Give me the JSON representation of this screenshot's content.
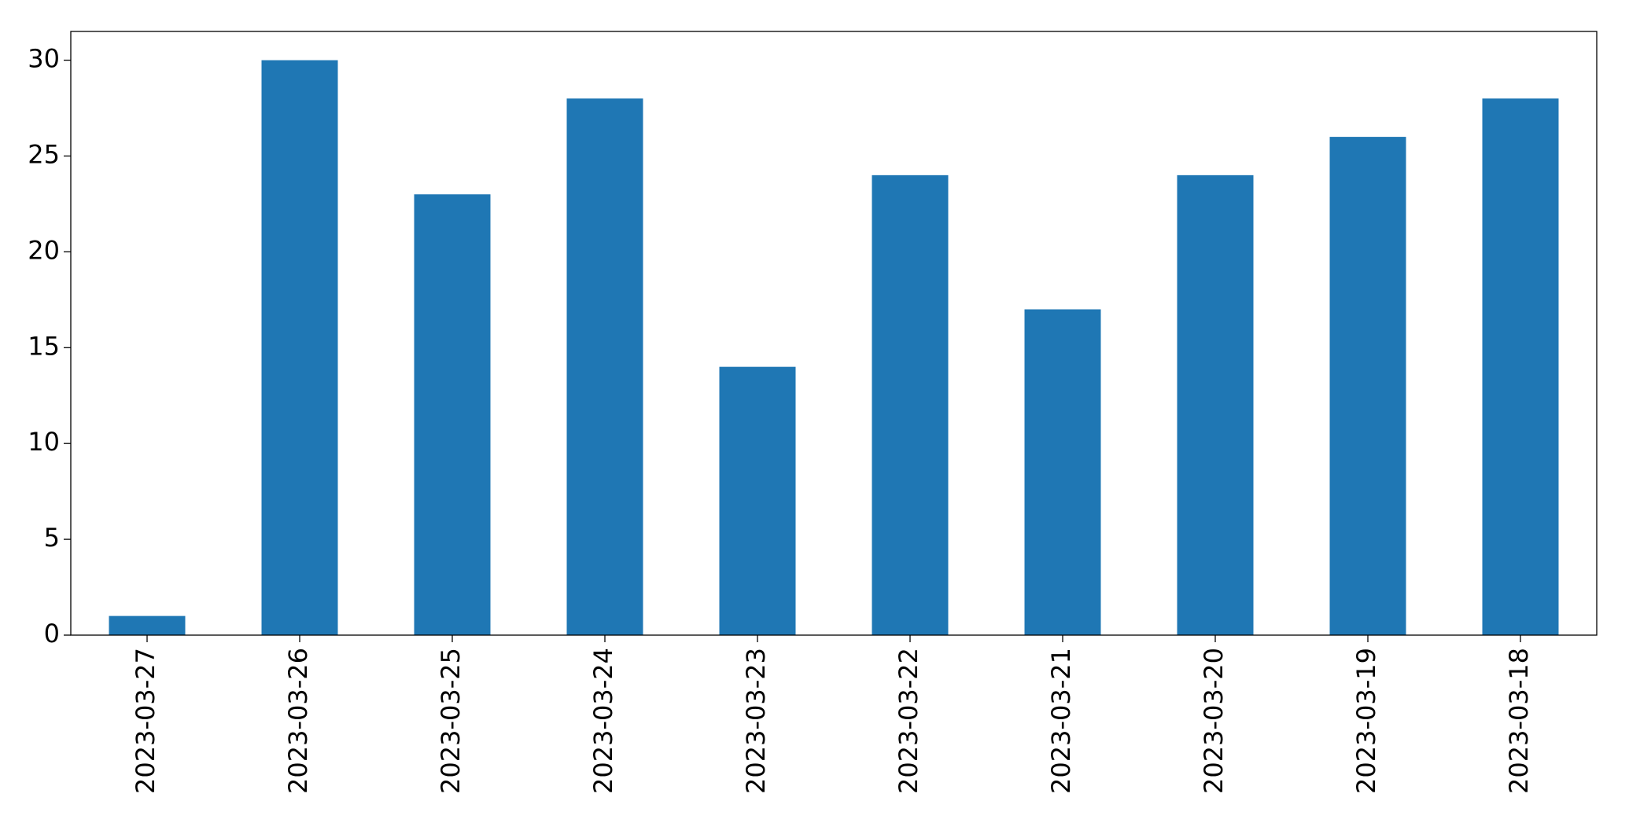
{
  "chart_data": {
    "type": "bar",
    "categories": [
      "2023-03-27",
      "2023-03-26",
      "2023-03-25",
      "2023-03-24",
      "2023-03-23",
      "2023-03-22",
      "2023-03-21",
      "2023-03-20",
      "2023-03-19",
      "2023-03-18"
    ],
    "values": [
      1,
      30,
      23,
      28,
      14,
      24,
      17,
      24,
      26,
      28
    ],
    "color": "#1f77b4",
    "ylim": [
      0,
      31.5
    ],
    "yticks": [
      0,
      5,
      10,
      15,
      20,
      25,
      30
    ],
    "grid": false
  }
}
